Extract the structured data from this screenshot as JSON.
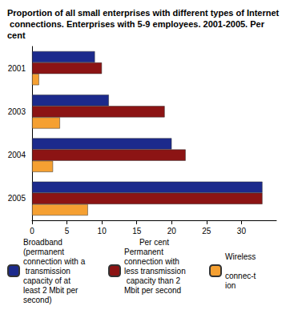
{
  "chart_data": {
    "type": "bar",
    "orientation": "horizontal",
    "title": "Proportion of all small enterprises with different types of Internet connections. Enterprises with 5-9 employees. 2001-2005. Per cent",
    "x_label": "Per cent",
    "categories": [
      "2001",
      "2003",
      "2004",
      "2005"
    ],
    "series": [
      {
        "name": "Broadband (permanent connection with a transmission capacity of at least 2 Mbit per second)",
        "color": "#1c2a8c",
        "values": [
          9,
          11,
          20,
          33
        ]
      },
      {
        "name": "Permanent connection with less transmission capacity than 2 Mbit per second",
        "color": "#8c1414",
        "values": [
          10,
          19,
          22,
          33
        ]
      },
      {
        "name": "Wireless connec-tion",
        "color": "#f5a032",
        "values": [
          1,
          4,
          3,
          8
        ]
      }
    ],
    "xlim": [
      0,
      35
    ],
    "xticks": [
      0,
      5,
      10,
      15,
      20,
      25,
      30
    ],
    "grid": false,
    "legend": "bottom"
  }
}
